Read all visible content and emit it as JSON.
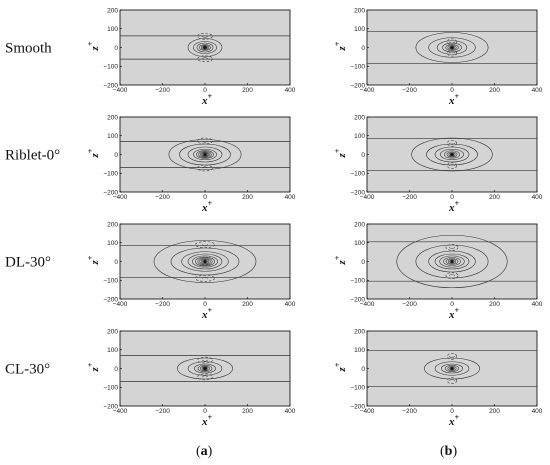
{
  "rows": [
    {
      "label": "Smooth",
      "a": {
        "band": 62,
        "contours": [
          [
            80,
            12
          ],
          [
            55,
            8
          ],
          [
            38,
            6
          ],
          [
            26,
            4
          ],
          [
            18,
            3
          ],
          [
            12,
            2.2
          ],
          [
            8,
            1.6
          ],
          [
            5,
            1.1
          ],
          [
            3,
            0.8
          ]
        ],
        "dashed": [
          [
            -60,
            1
          ],
          [
            60,
            -1
          ]
        ]
      },
      "b": {
        "band": 85,
        "contours": [
          [
            170,
            20
          ],
          [
            110,
            13
          ],
          [
            70,
            9
          ],
          [
            45,
            6
          ],
          [
            30,
            4
          ],
          [
            20,
            3
          ],
          [
            13,
            2
          ],
          [
            8,
            1.3
          ],
          [
            4,
            0.8
          ]
        ],
        "dashed": [
          [
            -30,
            1
          ],
          [
            30,
            -1
          ]
        ]
      }
    },
    {
      "label": "Riblet-0°",
      "a": {
        "band": 70,
        "contours": [
          [
            170,
            20
          ],
          [
            120,
            14
          ],
          [
            80,
            10
          ],
          [
            55,
            7
          ],
          [
            40,
            5.5
          ],
          [
            30,
            4.5
          ],
          [
            22,
            3.5
          ],
          [
            16,
            2.8
          ],
          [
            11,
            2.2
          ],
          [
            7,
            1.5
          ],
          [
            4,
            1
          ]
        ],
        "dashed": [
          [
            -72,
            1
          ],
          [
            72,
            -1
          ]
        ]
      },
      "b": {
        "band": 85,
        "contours": [
          [
            190,
            22
          ],
          [
            120,
            14
          ],
          [
            80,
            10
          ],
          [
            55,
            7
          ],
          [
            36,
            5
          ],
          [
            24,
            3.5
          ],
          [
            15,
            2.5
          ],
          [
            9,
            1.6
          ],
          [
            5,
            1
          ]
        ],
        "dashed": [
          [
            -60,
            1
          ],
          [
            60,
            -1
          ]
        ]
      }
    },
    {
      "label": "DL-30°",
      "a": {
        "band": 85,
        "contours": [
          [
            240,
            28
          ],
          [
            160,
            18
          ],
          [
            110,
            13
          ],
          [
            80,
            10
          ],
          [
            60,
            7.5
          ],
          [
            45,
            6
          ],
          [
            34,
            5
          ],
          [
            25,
            4
          ],
          [
            18,
            3
          ],
          [
            12,
            2.2
          ],
          [
            7,
            1.5
          ],
          [
            4,
            1
          ]
        ],
        "dashed": [
          [
            -90,
            1
          ],
          [
            90,
            -1
          ]
        ]
      },
      "b": {
        "band": 105,
        "contours": [
          [
            260,
            35
          ],
          [
            170,
            22
          ],
          [
            110,
            14
          ],
          [
            80,
            10
          ],
          [
            58,
            7.5
          ],
          [
            40,
            5.5
          ],
          [
            28,
            4
          ],
          [
            18,
            3
          ],
          [
            11,
            2
          ],
          [
            6,
            1.2
          ]
        ],
        "dashed": [
          [
            -75,
            1
          ],
          [
            75,
            -1
          ]
        ]
      }
    },
    {
      "label": "CL-30°",
      "a": {
        "band": 70,
        "contours": [
          [
            130,
            14
          ],
          [
            80,
            9
          ],
          [
            50,
            6
          ],
          [
            33,
            4.5
          ],
          [
            22,
            3.2
          ],
          [
            14,
            2.3
          ],
          [
            9,
            1.6
          ],
          [
            5,
            1
          ]
        ],
        "dashed": [
          [
            -45,
            1
          ],
          [
            45,
            -1
          ]
        ]
      },
      "b": {
        "band": 95,
        "contours": [
          [
            130,
            14
          ],
          [
            80,
            9
          ],
          [
            50,
            6
          ],
          [
            32,
            4.3
          ],
          [
            20,
            3
          ],
          [
            12,
            2
          ],
          [
            7,
            1.3
          ],
          [
            4,
            0.9
          ]
        ],
        "dashed": [
          [
            -65,
            1
          ],
          [
            65,
            -1
          ]
        ]
      }
    }
  ],
  "axes": {
    "xlim": [
      -400,
      400
    ],
    "ylim": [
      -200,
      200
    ],
    "xticks": [
      "−400",
      "−200",
      "0",
      "200",
      "400"
    ],
    "yticks": [
      "200",
      "100",
      "0",
      "−100",
      "−200"
    ],
    "xlabel": "x",
    "ylabel": "z",
    "superscript": "+"
  },
  "captions": {
    "a": "a",
    "b": "b"
  },
  "colors": {
    "panel_bg": "#d4d4d4",
    "line": "#333333"
  }
}
